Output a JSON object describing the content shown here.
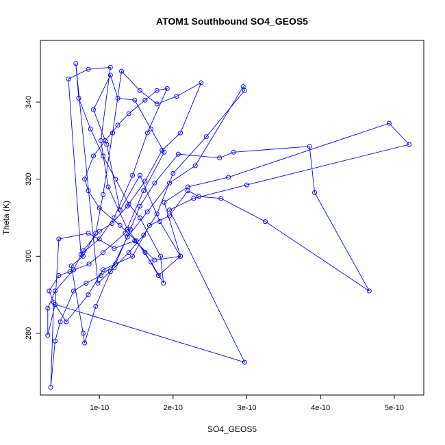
{
  "chart_data": {
    "type": "line",
    "title": "ATOM1 Southbound SO4_GEOS5",
    "xlabel": "SO4_GEOS5",
    "ylabel": "Theta (K)",
    "xlim": [
      2e-11,
      5.4e-10
    ],
    "ylim": [
      264,
      356
    ],
    "x_ticks": [
      1e-10,
      2e-10,
      3e-10,
      4e-10,
      5e-10
    ],
    "x_tick_labels": [
      "1e-10",
      "2e-10",
      "3e-10",
      "4e-10",
      "5e-10"
    ],
    "y_ticks": [
      280,
      300,
      320,
      340
    ],
    "y_tick_labels": [
      "280",
      "300",
      "320",
      "340"
    ],
    "grid": false,
    "marker": "open-circle",
    "colors": {
      "series": "#0000ff",
      "axes": "#000000",
      "background": "#ffffff"
    },
    "series": [
      {
        "points": [
          [
            2.1e-10,
            300.0
          ],
          [
            1.82e-10,
            309.0
          ],
          [
            1.55e-10,
            321.0
          ],
          [
            1.28e-10,
            312.0
          ],
          [
            1.1e-10,
            329.0
          ],
          [
            9.2e-11,
            338.0
          ],
          [
            1.15e-10,
            347.0
          ],
          [
            1.25e-10,
            341.0
          ],
          [
            1.48e-10,
            340.5
          ],
          [
            1.7e-10,
            333.0
          ],
          [
            1.88e-10,
            327.0
          ],
          [
            1.6e-10,
            317.0
          ],
          [
            1.35e-10,
            306.0
          ],
          [
            1.05e-10,
            301.0
          ],
          [
            8.6e-11,
            298.0
          ],
          [
            6e-11,
            296.0
          ],
          [
            4.5e-11,
            295.0
          ],
          [
            3.2e-11,
            291.0
          ],
          [
            3.8e-11,
            288.0
          ],
          [
            3.4e-11,
            266.0
          ],
          [
            4e-11,
            278.0
          ],
          [
            4.7e-11,
            283.0
          ],
          [
            6.5e-11,
            291.0
          ],
          [
            8.2e-11,
            293.0
          ],
          [
            1.02e-10,
            295.0
          ],
          [
            1.22e-10,
            298.0
          ],
          [
            1.42e-10,
            307.0
          ],
          [
            1.55e-10,
            313.0
          ],
          [
            1.75e-10,
            319.0
          ],
          [
            2.07e-10,
            326.5
          ],
          [
            2.63e-10,
            325.5
          ],
          [
            2.82e-10,
            327.0
          ],
          [
            3.85e-10,
            328.5
          ],
          [
            3.92e-10,
            316.5
          ],
          [
            4.66e-10,
            291.0
          ],
          [
            3.25e-10,
            309.0
          ],
          [
            2.65e-10,
            315.0
          ],
          [
            2.35e-10,
            315.5
          ],
          [
            2.2e-10,
            317.0
          ],
          [
            1.95e-10,
            310.5
          ],
          [
            1.68e-10,
            308.0
          ],
          [
            1.45e-10,
            300.0
          ],
          [
            1.05e-10,
            296.5
          ],
          [
            8.5e-11,
            290.0
          ],
          [
            5.5e-11,
            283.0
          ],
          [
            4e-11,
            287.5
          ],
          [
            3e-11,
            279.5
          ],
          [
            3e-11,
            286.5
          ],
          [
            4e-11,
            291.0
          ],
          [
            6.5e-11,
            296.5
          ],
          [
            7.8e-11,
            301.5
          ],
          [
            1e-10,
            306.5
          ],
          [
            1.17e-10,
            308.5
          ],
          [
            1.38e-10,
            313.0
          ],
          [
            1.62e-10,
            319.5
          ],
          [
            1.85e-10,
            327.5
          ],
          [
            2.1e-10,
            332.0
          ],
          [
            2.38e-10,
            345.0
          ],
          [
            2.05e-10,
            341.5
          ],
          [
            1.78e-10,
            339.5
          ],
          [
            1.55e-10,
            343.0
          ],
          [
            1.3e-10,
            348.0
          ],
          [
            1.18e-10,
            332.0
          ],
          [
            1.05e-10,
            316.0
          ],
          [
            9.5e-11,
            306.0
          ],
          [
            7.8e-11,
            300.0
          ],
          [
            6.2e-11,
            297.5
          ],
          [
            7.8e-11,
            280.0
          ],
          [
            8e-11,
            277.5
          ],
          [
            9.5e-11,
            287.0
          ],
          [
            1.15e-10,
            296.0
          ],
          [
            1.38e-10,
            305.0
          ],
          [
            1.65e-10,
            311.5
          ],
          [
            1.95e-10,
            319.0
          ],
          [
            2.3e-10,
            323.5
          ],
          [
            2.95e-10,
            344.0
          ],
          [
            2.97e-10,
            343.0
          ],
          [
            2.45e-10,
            331.0
          ],
          [
            2e-10,
            321.5
          ],
          [
            1.78e-10,
            311.0
          ],
          [
            1.6e-10,
            305.5
          ],
          [
            1.4e-10,
            301.0
          ],
          [
            1.2e-10,
            297.0
          ],
          [
            9.8e-11,
            293.0
          ],
          [
            6.8e-11,
            350.0
          ],
          [
            7.2e-11,
            341.0
          ],
          [
            8.8e-11,
            333.0
          ],
          [
            1.05e-10,
            326.0
          ],
          [
            1.22e-10,
            320.0
          ],
          [
            1.4e-10,
            313.5
          ],
          [
            1.55e-10,
            310.0
          ],
          [
            1.83e-10,
            300.0
          ],
          [
            1.87e-10,
            293.0
          ],
          [
            1.7e-10,
            298.5
          ],
          [
            1.5e-10,
            304.0
          ],
          [
            1.28e-10,
            308.0
          ],
          [
            1e-10,
            312.5
          ],
          [
            8.5e-11,
            317.0
          ],
          [
            8e-11,
            320.0
          ],
          [
            9.2e-11,
            326.0
          ],
          [
            1.08e-10,
            330.0
          ],
          [
            1.25e-10,
            334.0
          ],
          [
            1.4e-10,
            337.0
          ],
          [
            1.62e-10,
            340.5
          ],
          [
            1.78e-10,
            343.0
          ],
          [
            1.92e-10,
            343.5
          ],
          [
            1.65e-10,
            332.0
          ],
          [
            1.45e-10,
            321.0
          ],
          [
            1.2e-10,
            310.0
          ],
          [
            1e-10,
            304.5
          ],
          [
            7.5e-11,
            300.5
          ],
          [
            5.8e-11,
            346.0
          ],
          [
            8.5e-11,
            348.5
          ],
          [
            1.15e-10,
            349.0
          ],
          [
            1.02e-10,
            330.0
          ],
          [
            1.12e-10,
            318.0
          ],
          [
            1.38e-10,
            307.0
          ],
          [
            1.62e-10,
            301.0
          ],
          [
            1.8e-10,
            295.0
          ],
          [
            2.1e-10,
            300.0
          ],
          [
            1.88e-10,
            314.0
          ],
          [
            2.2e-10,
            318.0
          ],
          [
            2.75e-10,
            320.5
          ],
          [
            4.93e-10,
            334.5
          ],
          [
            5.2e-10,
            329.0
          ],
          [
            3e-10,
            318.5
          ],
          [
            2.28e-10,
            315.0
          ],
          [
            1.95e-10,
            312.0
          ],
          [
            2.97e-10,
            272.5
          ],
          [
            4e-11,
            287.5
          ],
          [
            4.5e-11,
            304.5
          ],
          [
            8.5e-11,
            306.0
          ],
          [
            1.2e-10,
            302.0
          ],
          [
            1.48e-10,
            304.0
          ],
          [
            1.75e-10,
            299.0
          ],
          [
            2.1e-10,
            300.0
          ]
        ]
      }
    ]
  }
}
